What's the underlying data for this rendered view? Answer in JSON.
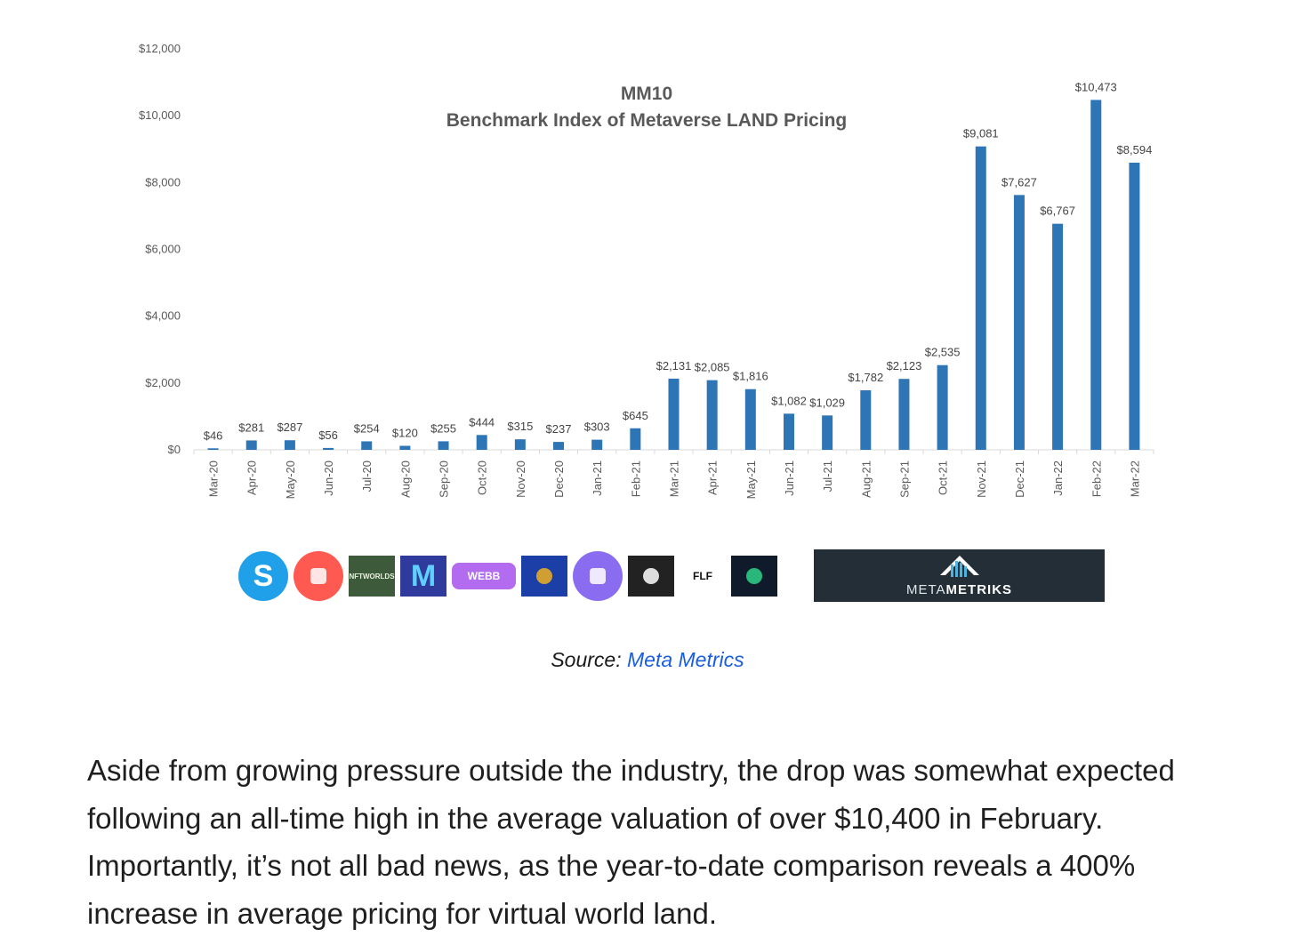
{
  "chart_data": {
    "type": "bar",
    "title": "MM10",
    "subtitle": "Benchmark Index of Metaverse LAND Pricing",
    "categories": [
      "Mar-20",
      "Apr-20",
      "May-20",
      "Jun-20",
      "Jul-20",
      "Aug-20",
      "Sep-20",
      "Oct-20",
      "Nov-20",
      "Dec-20",
      "Jan-21",
      "Feb-21",
      "Mar-21",
      "Apr-21",
      "May-21",
      "Jun-21",
      "Jul-21",
      "Aug-21",
      "Sep-21",
      "Oct-21",
      "Nov-21",
      "Dec-21",
      "Jan-22",
      "Feb-22",
      "Mar-22"
    ],
    "values": [
      46,
      281,
      287,
      56,
      254,
      120,
      255,
      444,
      315,
      237,
      303,
      645,
      2131,
      2085,
      1816,
      1082,
      1029,
      1782,
      2123,
      2535,
      9081,
      7627,
      6767,
      10473,
      8594
    ],
    "value_labels": [
      "$46",
      "$281",
      "$287",
      "$56",
      "$254",
      "$120",
      "$255",
      "$444",
      "$315",
      "$237",
      "$303",
      "$645",
      "$2,131",
      "$2,085",
      "$1,816",
      "$1,082",
      "$1,029",
      "$1,782",
      "$2,123",
      "$2,535",
      "$9,081",
      "$7,627",
      "$6,767",
      "$10,473",
      "$8,594"
    ],
    "y_ticks": [
      "$0",
      "$2,000",
      "$4,000",
      "$6,000",
      "$8,000",
      "$10,000",
      "$12,000"
    ],
    "ylim": [
      0,
      12000
    ],
    "xlabel": "",
    "ylabel": "",
    "grid": false,
    "bar_color": "#2e75b6"
  },
  "logos": [
    {
      "name": "sandbox-logo",
      "text": "S",
      "bg": "#1fa0e8",
      "fg": "#ffffff",
      "shape": "circle"
    },
    {
      "name": "decentraland-logo",
      "text": "",
      "bg": "#ff5a52",
      "fg": "#ffffff",
      "shape": "circle"
    },
    {
      "name": "nftworlds-logo",
      "text": "NFTWORLDS",
      "bg": "#3d5a3a",
      "fg": "#e8f2e0",
      "shape": "square"
    },
    {
      "name": "m-logo",
      "text": "M",
      "bg": "#2e3a9c",
      "fg": "#5fd0ff",
      "shape": "square"
    },
    {
      "name": "worldwide-webb-logo",
      "text": "WEBB",
      "bg": "#b36cf0",
      "fg": "#ffffff",
      "shape": "wide"
    },
    {
      "name": "blue-square-logo",
      "text": "",
      "bg": "#1b3fa6",
      "fg": "#f0b020",
      "shape": "square"
    },
    {
      "name": "purple-blob-logo",
      "text": "",
      "bg": "#8a6cf0",
      "fg": "#ffffff",
      "shape": "circle"
    },
    {
      "name": "cube-logo",
      "text": "",
      "bg": "#222222",
      "fg": "#ffffff",
      "shape": "square"
    },
    {
      "name": "flf-logo",
      "text": "FLF",
      "bg": "#ffffff",
      "fg": "#111111",
      "shape": "square"
    },
    {
      "name": "tree-logo",
      "text": "",
      "bg": "#0f1a2a",
      "fg": "#2fd48a",
      "shape": "square"
    }
  ],
  "banner": {
    "text_light": "META",
    "text_bold": "METRIKS",
    "bg": "#232e36"
  },
  "source": {
    "prefix": "Source: ",
    "link_text": "Meta Metrics",
    "link_color": "#1a5ee0"
  },
  "paragraph": "Aside from growing pressure outside the industry, the drop was somewhat expected following an all-time high in the average valuation of over $10,400 in February. Importantly, it’s not all bad news, as the year-to-date comparison reveals a 400% increase in average pricing for virtual world land."
}
